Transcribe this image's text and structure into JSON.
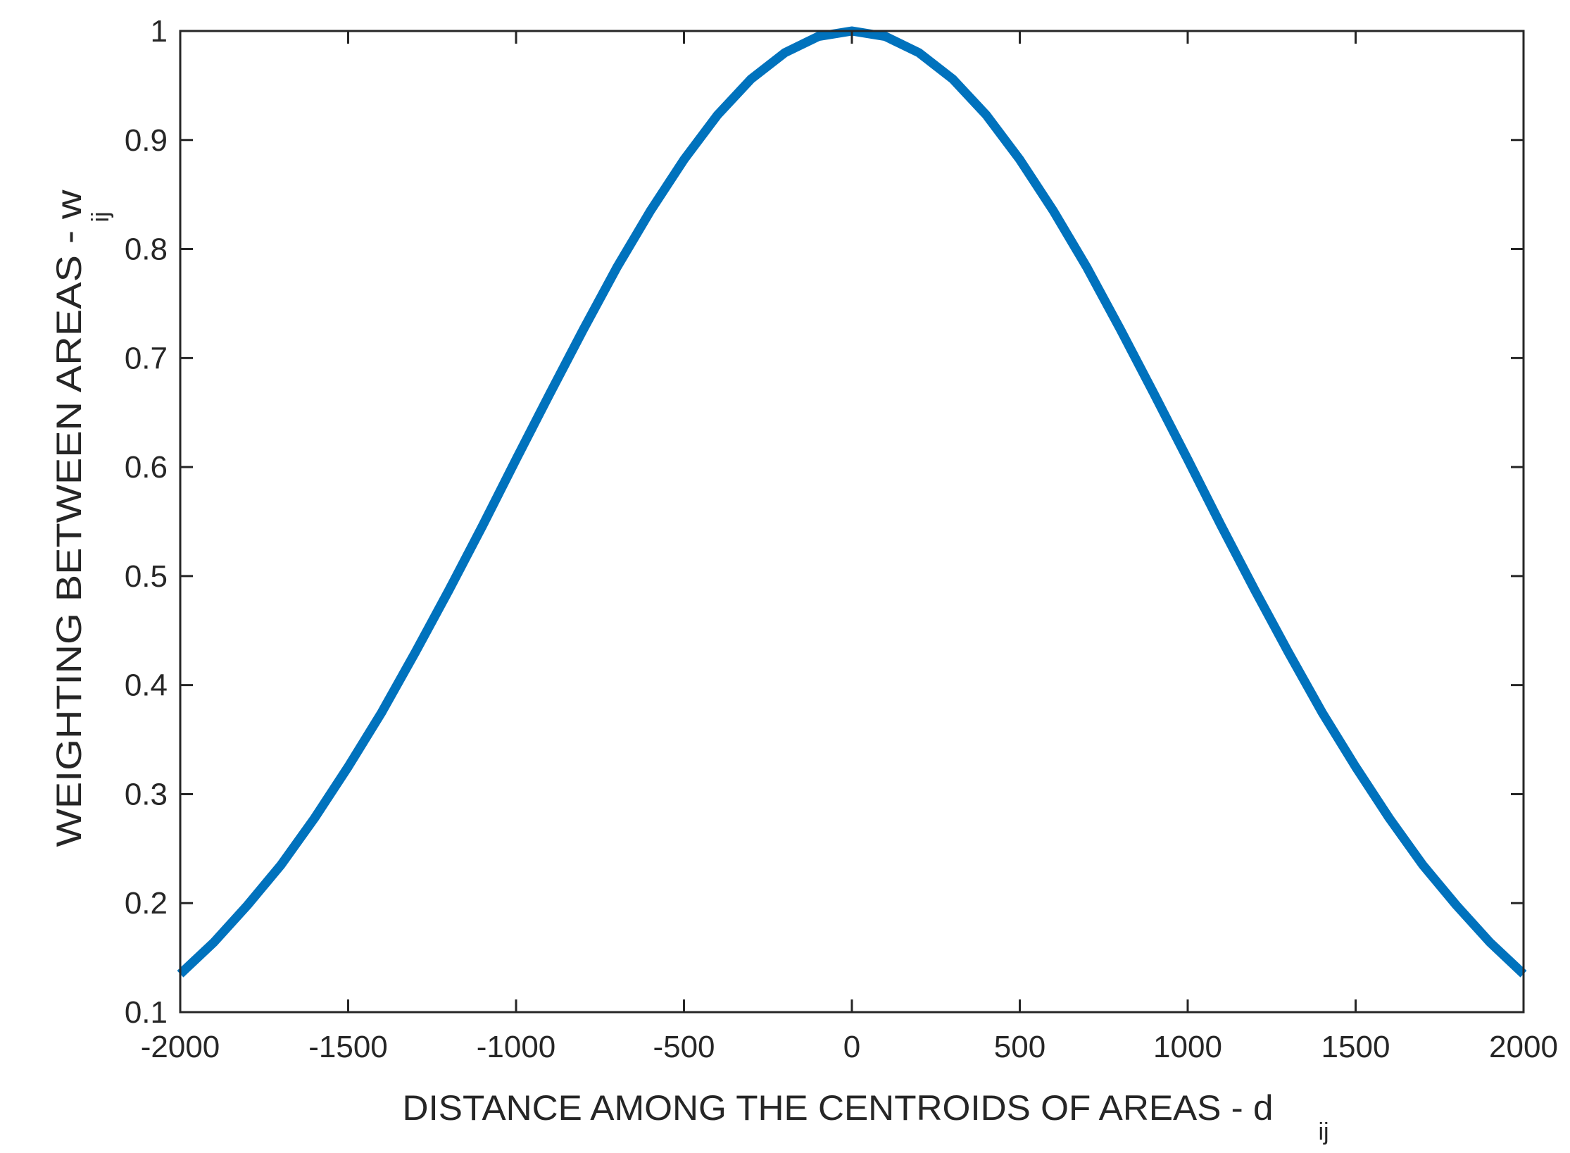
{
  "chart_data": {
    "type": "line",
    "title": "",
    "xlabel": "DISTANCE AMONG THE CENTROIDS OF AREAS - d",
    "xlabel_subscript": "ij",
    "ylabel": "WEIGHTING BETWEEN AREAS - w",
    "ylabel_subscript": "ij",
    "xlim": [
      -2000,
      2000
    ],
    "ylim": [
      0.1,
      1
    ],
    "xticks": [
      -2000,
      -1500,
      -1000,
      -500,
      0,
      500,
      1000,
      1500,
      2000
    ],
    "xtick_labels": [
      "-2000",
      "-1500",
      "-1000",
      "-500",
      "0",
      "500",
      "1000",
      "1500",
      "2000"
    ],
    "yticks": [
      0.1,
      0.2,
      0.3,
      0.4,
      0.5,
      0.6,
      0.7,
      0.8,
      0.9,
      1
    ],
    "ytick_labels": [
      "0.1",
      "0.2",
      "0.3",
      "0.4",
      "0.5",
      "0.6",
      "0.7",
      "0.8",
      "0.9",
      "1"
    ],
    "grid": false,
    "box": true,
    "series": [
      {
        "color": "#0072BD",
        "x": [
          -2000,
          -1900,
          -1800,
          -1700,
          -1600,
          -1500,
          -1400,
          -1300,
          -1200,
          -1100,
          -1000,
          -900,
          -800,
          -700,
          -600,
          -500,
          -400,
          -300,
          -200,
          -100,
          0,
          100,
          200,
          300,
          400,
          500,
          600,
          700,
          800,
          900,
          1000,
          1100,
          1200,
          1300,
          1400,
          1500,
          1600,
          1700,
          1800,
          1900,
          2000
        ],
        "y": [
          0.135,
          0.164,
          0.198,
          0.235,
          0.278,
          0.325,
          0.375,
          0.43,
          0.487,
          0.546,
          0.607,
          0.667,
          0.726,
          0.783,
          0.835,
          0.882,
          0.923,
          0.956,
          0.98,
          0.995,
          1.0,
          0.995,
          0.98,
          0.956,
          0.923,
          0.882,
          0.835,
          0.783,
          0.726,
          0.667,
          0.607,
          0.546,
          0.487,
          0.43,
          0.375,
          0.325,
          0.278,
          0.235,
          0.198,
          0.164,
          0.135
        ]
      }
    ]
  },
  "colors": {
    "line": "#0072BD",
    "axes": "#262626",
    "background": "#ffffff"
  }
}
